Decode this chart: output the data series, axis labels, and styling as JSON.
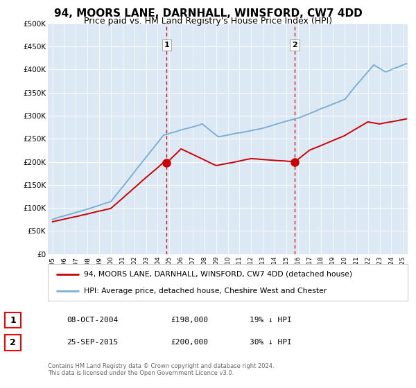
{
  "title": "94, MOORS LANE, DARNHALL, WINSFORD, CW7 4DD",
  "subtitle": "Price paid vs. HM Land Registry's House Price Index (HPI)",
  "ylim": [
    0,
    500000
  ],
  "xlim_start": 1994.6,
  "xlim_end": 2025.4,
  "bg_color": "#dce9f5",
  "grid_color": "#ffffff",
  "sale1_x": 2004.77,
  "sale1_y": 198000,
  "sale1_label": "1",
  "sale1_date": "08-OCT-2004",
  "sale1_price": "£198,000",
  "sale1_hpi": "19% ↓ HPI",
  "sale2_x": 2015.73,
  "sale2_y": 200000,
  "sale2_label": "2",
  "sale2_date": "25-SEP-2015",
  "sale2_price": "£200,000",
  "sale2_hpi": "30% ↓ HPI",
  "legend_line1": "94, MOORS LANE, DARNHALL, WINSFORD, CW7 4DD (detached house)",
  "legend_line2": "HPI: Average price, detached house, Cheshire West and Chester",
  "footer1": "Contains HM Land Registry data © Crown copyright and database right 2024.",
  "footer2": "This data is licensed under the Open Government Licence v3.0.",
  "red_color": "#cc0000",
  "blue_color": "#7ab0d4",
  "vline_color": "#cc0000",
  "title_fontsize": 11,
  "subtitle_fontsize": 9
}
